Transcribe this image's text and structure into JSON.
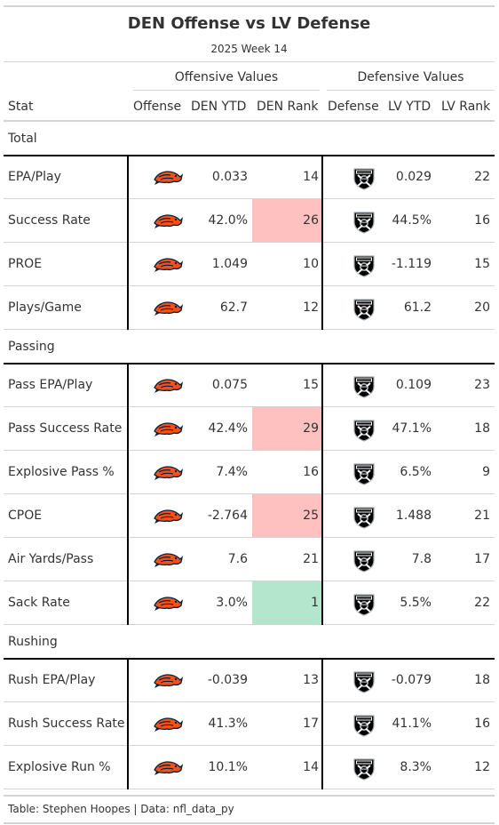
{
  "title": "DEN Offense vs LV Defense",
  "subtitle": "2025 Week 14",
  "spanners": {
    "offense": "Offensive Values",
    "defense": "Defensive Values"
  },
  "columns": {
    "stat": "Stat",
    "offense": "Offense",
    "den_ytd": "DEN YTD",
    "den_rank": "DEN Rank",
    "defense": "Defense",
    "lv_ytd": "LV YTD",
    "lv_rank": "LV Rank"
  },
  "teams": {
    "offense_logo": "broncos-logo-icon",
    "defense_logo": "raiders-logo-icon"
  },
  "highlight_colors": {
    "bad": "#ffc0c0",
    "good": "#b3e6cc"
  },
  "groups": [
    {
      "label": "Total",
      "rows": [
        {
          "stat": "EPA/Play",
          "den_ytd": "0.033",
          "den_rank": "14",
          "lv_ytd": "0.029",
          "lv_rank": "22",
          "highlight": ""
        },
        {
          "stat": "Success Rate",
          "den_ytd": "42.0%",
          "den_rank": "26",
          "lv_ytd": "44.5%",
          "lv_rank": "16",
          "highlight": "bad"
        },
        {
          "stat": "PROE",
          "den_ytd": "1.049",
          "den_rank": "10",
          "lv_ytd": "-1.119",
          "lv_rank": "15",
          "highlight": ""
        },
        {
          "stat": "Plays/Game",
          "den_ytd": "62.7",
          "den_rank": "12",
          "lv_ytd": "61.2",
          "lv_rank": "20",
          "highlight": ""
        }
      ]
    },
    {
      "label": "Passing",
      "rows": [
        {
          "stat": "Pass EPA/Play",
          "den_ytd": "0.075",
          "den_rank": "15",
          "lv_ytd": "0.109",
          "lv_rank": "23",
          "highlight": ""
        },
        {
          "stat": "Pass Success Rate",
          "den_ytd": "42.4%",
          "den_rank": "29",
          "lv_ytd": "47.1%",
          "lv_rank": "18",
          "highlight": "bad"
        },
        {
          "stat": "Explosive Pass %",
          "den_ytd": "7.4%",
          "den_rank": "16",
          "lv_ytd": "6.5%",
          "lv_rank": "9",
          "highlight": ""
        },
        {
          "stat": "CPOE",
          "den_ytd": "-2.764",
          "den_rank": "25",
          "lv_ytd": "1.488",
          "lv_rank": "21",
          "highlight": "bad"
        },
        {
          "stat": "Air Yards/Pass",
          "den_ytd": "7.6",
          "den_rank": "21",
          "lv_ytd": "7.8",
          "lv_rank": "17",
          "highlight": ""
        },
        {
          "stat": "Sack Rate",
          "den_ytd": "3.0%",
          "den_rank": "1",
          "lv_ytd": "5.5%",
          "lv_rank": "22",
          "highlight": "good"
        }
      ]
    },
    {
      "label": "Rushing",
      "rows": [
        {
          "stat": "Rush EPA/Play",
          "den_ytd": "-0.039",
          "den_rank": "13",
          "lv_ytd": "-0.079",
          "lv_rank": "18",
          "highlight": ""
        },
        {
          "stat": "Rush Success Rate",
          "den_ytd": "41.3%",
          "den_rank": "17",
          "lv_ytd": "41.1%",
          "lv_rank": "16",
          "highlight": ""
        },
        {
          "stat": "Explosive Run %",
          "den_ytd": "10.1%",
          "den_rank": "14",
          "lv_ytd": "8.3%",
          "lv_rank": "12",
          "highlight": ""
        }
      ]
    }
  ],
  "footer": "Table: Stephen Hoopes | Data: nfl_data_py"
}
